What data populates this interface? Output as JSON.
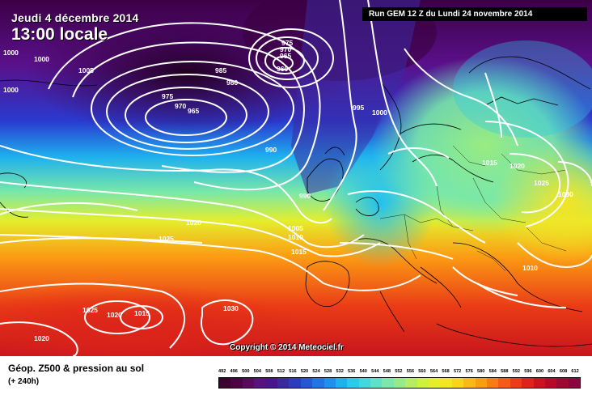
{
  "header": {
    "date": "Jeudi 4 décembre 2014",
    "local_time": "13:00 locale",
    "run": "Run GEM 12 Z du Lundi 24 novembre 2014"
  },
  "copyright": "Copyright © 2014 Meteociel.fr",
  "legend": {
    "title": "Géop. Z500 & pression au sol",
    "subtitle": "(+ 240h)",
    "scale": [
      "492",
      "496",
      "500",
      "504",
      "508",
      "512",
      "516",
      "520",
      "524",
      "528",
      "532",
      "536",
      "540",
      "544",
      "548",
      "552",
      "556",
      "560",
      "564",
      "568",
      "572",
      "576",
      "580",
      "584",
      "588",
      "592",
      "596",
      "600",
      "604",
      "608",
      "612"
    ],
    "scale_colors": [
      "#3c0030",
      "#500045",
      "#5c0860",
      "#5a1080",
      "#4a148f",
      "#3a2aa0",
      "#2c3cc0",
      "#2058d8",
      "#1f74e6",
      "#1c92ee",
      "#20b0f0",
      "#2cc8ee",
      "#40d8e0",
      "#5ce2c8",
      "#7ae8a8",
      "#96ec84",
      "#b4ee60",
      "#cef040",
      "#e4ee2c",
      "#f4e424",
      "#fcd21c",
      "#fcb818",
      "#fc9c14",
      "#f87c14",
      "#f25c14",
      "#ea3c16",
      "#dc241a",
      "#c8141e",
      "#b40c28",
      "#a00834",
      "#8c0440"
    ]
  },
  "isobar_labels": [
    "1000",
    "1000",
    "1000",
    "1005",
    "985",
    "980",
    "975",
    "970",
    "965",
    "960",
    "965",
    "970",
    "975",
    "990",
    "995",
    "1000",
    "990",
    "1005",
    "1010",
    "1015",
    "1020",
    "1025",
    "1015",
    "1020",
    "1025",
    "1030",
    "1010",
    "1025",
    "1020",
    "1015",
    "1030",
    "1020",
    "1015"
  ]
}
